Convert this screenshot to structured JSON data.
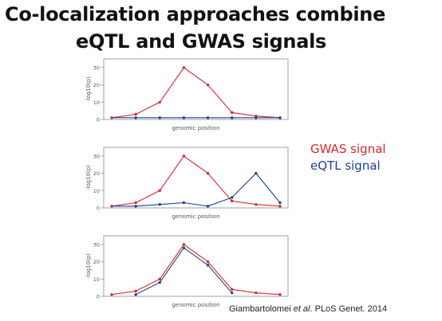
{
  "slide": {
    "title_line1": "Co-localization approaches combine",
    "title_line2": "eQTL and GWAS signals"
  },
  "legend": [
    {
      "label": "GWAS signal",
      "color": "#d9282f"
    },
    {
      "label": "eQTL signal",
      "color": "#1f3f94"
    }
  ],
  "citation": {
    "authors_prefix": "Giambartolomei ",
    "et_al": "et al",
    "rest": ". PLoS Genet. 2014"
  },
  "chart_data": [
    {
      "type": "line",
      "xlabel": "genomic position",
      "ylabel": "-log10(p)",
      "ylim": [
        0,
        35
      ],
      "yticks": [
        0,
        10,
        20,
        30
      ],
      "x": [
        1,
        2,
        3,
        4,
        5,
        6,
        7,
        8
      ],
      "series": [
        {
          "name": "GWAS signal",
          "color": "#d9282f",
          "values": [
            1,
            3,
            10,
            30,
            20,
            4,
            2,
            1
          ],
          "point_indices": [
            0,
            1,
            2,
            3,
            4,
            5,
            6,
            7
          ]
        },
        {
          "name": "eQTL signal",
          "color": "#1f3f94",
          "values": [
            1,
            1,
            1,
            1,
            1,
            1,
            1,
            1
          ],
          "point_indices": [
            1,
            2,
            3,
            4,
            5,
            6,
            7
          ]
        }
      ]
    },
    {
      "type": "line",
      "xlabel": "genomic position",
      "ylabel": "-log10(p)",
      "ylim": [
        0,
        35
      ],
      "yticks": [
        0,
        10,
        20,
        30
      ],
      "x": [
        1,
        2,
        3,
        4,
        5,
        6,
        7,
        8
      ],
      "series": [
        {
          "name": "GWAS signal",
          "color": "#d9282f",
          "values": [
            1,
            3,
            10,
            30,
            20,
            4,
            2,
            1
          ],
          "point_indices": [
            0,
            1,
            2,
            3,
            4,
            5,
            6,
            7
          ]
        },
        {
          "name": "eQTL signal",
          "color": "#1f3f94",
          "values": [
            1,
            1,
            2,
            3,
            1,
            6,
            20,
            3
          ],
          "point_indices": [
            1,
            2,
            3,
            4,
            5,
            6,
            7
          ]
        }
      ]
    },
    {
      "type": "line",
      "xlabel": "genomic position",
      "ylabel": "-log10(p)",
      "ylim": [
        0,
        35
      ],
      "yticks": [
        0,
        10,
        20,
        30
      ],
      "x": [
        1,
        2,
        3,
        4,
        5,
        6,
        7,
        8
      ],
      "series": [
        {
          "name": "GWAS signal",
          "color": "#d9282f",
          "values": [
            1,
            3,
            10,
            30,
            20,
            4,
            2,
            1
          ],
          "point_indices": [
            0,
            1,
            2,
            3,
            4,
            5,
            6,
            7
          ]
        },
        {
          "name": "eQTL signal",
          "color": "#1f3f94",
          "values": [
            null,
            1,
            8,
            28,
            18,
            2,
            null,
            null
          ],
          "point_indices": [
            1,
            2,
            3,
            4,
            5
          ]
        }
      ]
    }
  ]
}
